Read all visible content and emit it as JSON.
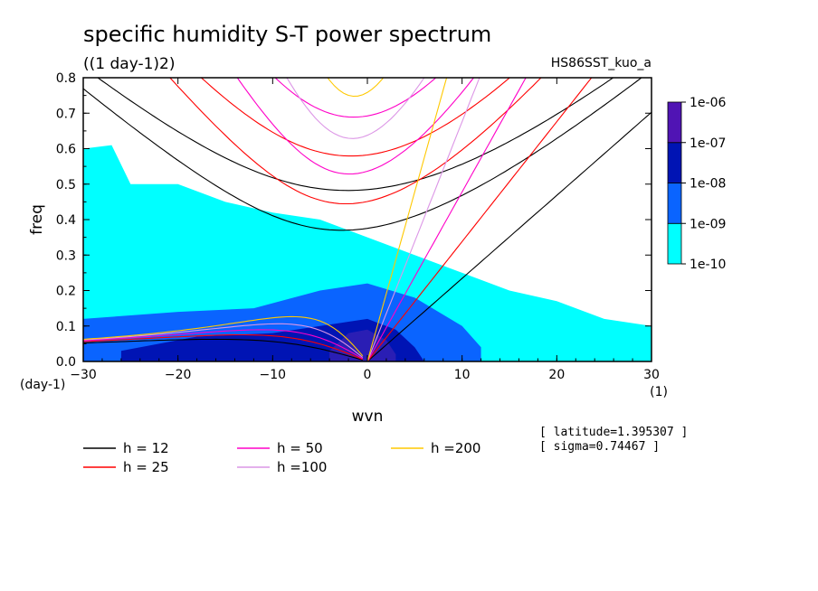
{
  "chart_data": {
    "type": "heatmap",
    "title": "specific humidity S-T power spectrum",
    "subtitle": "((1 day-1)2)",
    "run_label": "HS86SST_kuo_a",
    "xlabel": "wvn",
    "ylabel": "freq",
    "x_unit": "(1)",
    "y_unit": "(day-1)",
    "xlim": [
      -30,
      30
    ],
    "ylim": [
      0,
      0.8
    ],
    "x_ticks": [
      "-30",
      "-20",
      "-10",
      "0",
      "10",
      "20",
      "30"
    ],
    "y_ticks": [
      "0.0",
      "0.1",
      "0.2",
      "0.3",
      "0.4",
      "0.5",
      "0.6",
      "0.7",
      "0.8"
    ],
    "colorbar": {
      "labels": [
        "1e-10",
        "1e-09",
        "1e-08",
        "1e-07",
        "1e-06"
      ],
      "colors": [
        "#00ffff",
        "#0a64ff",
        "#0014b4",
        "#2a1eb4",
        "#5014b4"
      ]
    },
    "shading": [
      {
        "level": "1e-10",
        "region": [
          [
            -30,
            0.6
          ],
          [
            -27,
            0.61
          ],
          [
            -25,
            0.5
          ],
          [
            -20,
            0.5
          ],
          [
            -15,
            0.45
          ],
          [
            -10,
            0.42
          ],
          [
            -5,
            0.4
          ],
          [
            0,
            0.35
          ],
          [
            5,
            0.3
          ],
          [
            10,
            0.25
          ],
          [
            15,
            0.2
          ],
          [
            20,
            0.17
          ],
          [
            25,
            0.12
          ],
          [
            30,
            0.1
          ],
          [
            30,
            0
          ],
          [
            -30,
            0
          ]
        ]
      },
      {
        "level": "1e-09",
        "region": [
          [
            -30,
            0.12
          ],
          [
            -20,
            0.14
          ],
          [
            -12,
            0.15
          ],
          [
            -5,
            0.2
          ],
          [
            0,
            0.22
          ],
          [
            5,
            0.18
          ],
          [
            10,
            0.1
          ],
          [
            12,
            0.04
          ],
          [
            12,
            0
          ],
          [
            -30,
            0
          ]
        ]
      },
      {
        "level": "1e-08",
        "region": [
          [
            -26,
            0.03
          ],
          [
            -18,
            0.07
          ],
          [
            -10,
            0.08
          ],
          [
            -5,
            0.1
          ],
          [
            0,
            0.12
          ],
          [
            3,
            0.09
          ],
          [
            5,
            0.04
          ],
          [
            6,
            0
          ],
          [
            -26,
            0
          ]
        ]
      },
      {
        "level": "1e-07",
        "region": [
          [
            -4,
            0.03
          ],
          [
            -2,
            0.08
          ],
          [
            0,
            0.09
          ],
          [
            2,
            0.06
          ],
          [
            3,
            0.02
          ],
          [
            3,
            0
          ],
          [
            -4,
            0
          ]
        ]
      }
    ],
    "legend": [
      {
        "name": "h = 12",
        "color": "#000000"
      },
      {
        "name": "h = 25",
        "color": "#ff0000"
      },
      {
        "name": "h = 50",
        "color": "#ff00c8"
      },
      {
        "name": "h =100",
        "color": "#dc96e6"
      },
      {
        "name": "h =200",
        "color": "#ffc800"
      }
    ],
    "annotations": [
      "[ latitude=1.395307 ]",
      "[ sigma=0.74467 ]"
    ]
  }
}
